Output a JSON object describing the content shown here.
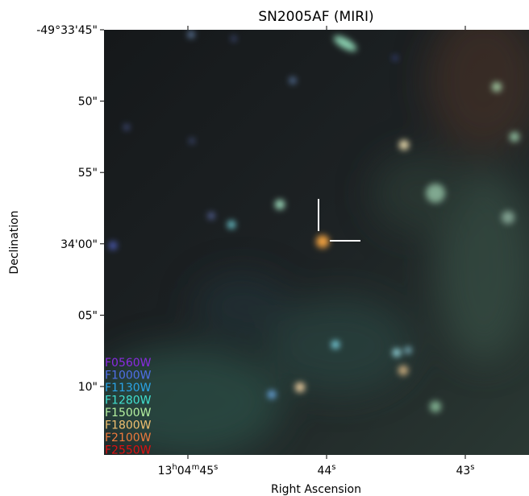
{
  "title": "SN2005AF (MIRI)",
  "x_label": "Right Ascension",
  "y_label": "Declination",
  "x_ticks": [
    [
      "13",
      "h",
      "04",
      "m",
      "45",
      "s"
    ],
    [
      "44",
      "s"
    ],
    [
      "43",
      "s"
    ]
  ],
  "y_ticks": [
    "-49°33'45\"",
    "50\"",
    "55\"",
    "34'00\"",
    "05\"",
    "10\""
  ],
  "filters": [
    {
      "name": "F0560W",
      "color": "#8a2be2"
    },
    {
      "name": "F1000W",
      "color": "#4f6fe8"
    },
    {
      "name": "F1130W",
      "color": "#2aa4e8"
    },
    {
      "name": "F1280W",
      "color": "#40e0d0"
    },
    {
      "name": "F1500W",
      "color": "#b4f0a0"
    },
    {
      "name": "F1800W",
      "color": "#f0c070"
    },
    {
      "name": "F2100W",
      "color": "#f07a3c"
    },
    {
      "name": "F2550W",
      "color": "#e01010"
    }
  ]
}
